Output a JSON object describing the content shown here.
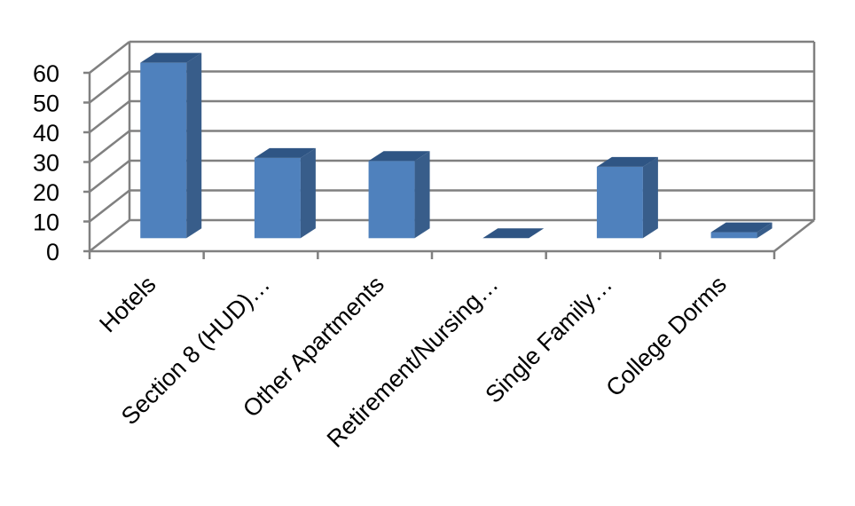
{
  "chart_data": {
    "type": "bar",
    "style": "3d-column",
    "categories": [
      "Hotels",
      "Section 8 (HUD)…",
      "Other Apartments",
      "Retirement/Nursing…",
      "Single Family…",
      "College Dorms"
    ],
    "values": [
      59,
      27,
      26,
      0,
      24,
      2
    ],
    "ylim": [
      0,
      60
    ],
    "yticks": [
      "0",
      "10",
      "20",
      "30",
      "40",
      "50",
      "60"
    ],
    "grid": true,
    "legend": "none",
    "colors": {
      "bar_front": "#4f81bd",
      "bar_side": "#385d8a",
      "bar_top": "#2f5584",
      "grid": "#808080"
    }
  }
}
